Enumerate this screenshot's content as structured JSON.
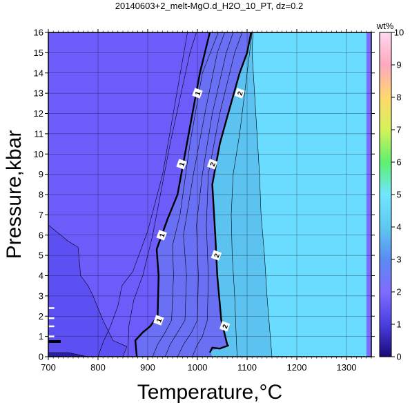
{
  "chart_data": {
    "type": "heatmap",
    "title": "20140603+2_melt-MgO.d_H2O_10_PT, dz=0.2",
    "xlabel": "Temperature,°C",
    "ylabel": "Pressure,kbar",
    "xlim": [
      700,
      1350
    ],
    "ylim": [
      0,
      16
    ],
    "x_ticks": [
      700,
      800,
      900,
      1000,
      1100,
      1200,
      1300
    ],
    "y_ticks": [
      0,
      1,
      2,
      3,
      4,
      5,
      6,
      7,
      8,
      9,
      10,
      11,
      12,
      13,
      14,
      15,
      16
    ],
    "grid": true,
    "colorbar": {
      "label": "wt%",
      "range": [
        0,
        10
      ],
      "ticks": [
        0,
        1,
        2,
        3,
        4,
        5,
        6,
        7,
        8,
        9,
        10
      ],
      "colors": [
        "#1a0a78",
        "#4a3ee0",
        "#7f6cff",
        "#5a8cf0",
        "#60c8f0",
        "#70e6ff",
        "#5ef070",
        "#d4f25a",
        "#ffd86c",
        "#ffa8c0",
        "#ffd8f0"
      ]
    },
    "regions": [
      {
        "level": 0.2,
        "color": "#2a20a8",
        "boundary": [
          [
            700,
            0
          ],
          [
            700,
            0.2
          ],
          [
            740,
            0.2
          ],
          [
            760,
            0.1
          ],
          [
            780,
            0
          ]
        ]
      },
      {
        "level": 0.4,
        "color": "#5c50f2",
        "boundary": [
          [
            700,
            0.2
          ],
          [
            740,
            0.2
          ],
          [
            760,
            0.1
          ],
          [
            780,
            0
          ],
          [
            850,
            0
          ],
          [
            858,
            0.5
          ],
          [
            830,
            0.8
          ],
          [
            810,
            1.8
          ],
          [
            790,
            3.0
          ],
          [
            780,
            3.5
          ],
          [
            765,
            4.0
          ],
          [
            760,
            5.4
          ],
          [
            740,
            5.7
          ],
          [
            700,
            6.5
          ]
        ]
      },
      {
        "level": 0.6,
        "color": "#6c5cfa",
        "boundary": [
          [
            700,
            6.5
          ],
          [
            740,
            5.7
          ],
          [
            760,
            5.4
          ],
          [
            765,
            4.0
          ],
          [
            780,
            3.5
          ],
          [
            790,
            3.0
          ],
          [
            810,
            1.8
          ],
          [
            830,
            0.8
          ],
          [
            858,
            0.5
          ],
          [
            850,
            0
          ],
          [
            1340,
            0
          ],
          [
            1340,
            16
          ],
          [
            700,
            16
          ]
        ]
      },
      {
        "level": 1.0,
        "color": "#6a70f4",
        "boundary": [
          [
            878,
            0
          ],
          [
            880,
            1.0
          ],
          [
            905,
            1.5
          ],
          [
            920,
            2.0
          ],
          [
            922,
            4.0
          ],
          [
            918,
            5.3
          ],
          [
            940,
            6.8
          ],
          [
            960,
            8.0
          ],
          [
            975,
            10.0
          ],
          [
            990,
            12.0
          ],
          [
            1005,
            14.0
          ],
          [
            1015,
            15.0
          ],
          [
            1025,
            16.0
          ],
          [
            1340,
            16
          ],
          [
            1340,
            0
          ]
        ]
      },
      {
        "level": 2.0,
        "color": "#5cc2f0",
        "boundary": [
          [
            1025,
            0.3
          ],
          [
            1045,
            0.4
          ],
          [
            1060,
            0.6
          ],
          [
            1048,
            1.8
          ],
          [
            1040,
            4.0
          ],
          [
            1036,
            6.0
          ],
          [
            1030,
            8.5
          ],
          [
            1045,
            10.5
          ],
          [
            1062,
            12.0
          ],
          [
            1085,
            14.0
          ],
          [
            1100,
            15.0
          ],
          [
            1108,
            16.0
          ],
          [
            1340,
            16
          ],
          [
            1340,
            0
          ],
          [
            1030,
            0
          ]
        ]
      },
      {
        "level": 3.0,
        "color": "#6adcff",
        "boundary": [
          [
            1150,
            0
          ],
          [
            1140,
            3.0
          ],
          [
            1135,
            5.0
          ],
          [
            1128,
            7.0
          ],
          [
            1125,
            9.0
          ],
          [
            1120,
            11.0
          ],
          [
            1115,
            13.0
          ],
          [
            1110,
            15.0
          ],
          [
            1112,
            16.0
          ],
          [
            1340,
            16
          ],
          [
            1340,
            0
          ]
        ]
      }
    ],
    "contours": [
      {
        "level": 1,
        "bold": true,
        "label": "1",
        "points": [
          [
            878,
            0
          ],
          [
            875,
            0.8
          ],
          [
            890,
            1.2
          ],
          [
            905,
            1.5
          ],
          [
            920,
            2.0
          ],
          [
            922,
            4.0
          ],
          [
            918,
            5.3
          ],
          [
            940,
            6.8
          ],
          [
            960,
            8.0
          ],
          [
            975,
            10.0
          ],
          [
            990,
            12.0
          ],
          [
            1005,
            14.0
          ],
          [
            1015,
            15.0
          ],
          [
            1025,
            16.0
          ]
        ],
        "labels_at": [
          [
            922,
            1.8
          ],
          [
            928,
            6.0
          ],
          [
            968,
            9.5
          ],
          [
            1000,
            13.0
          ]
        ]
      },
      {
        "level": 2,
        "bold": true,
        "label": "2",
        "points": [
          [
            1025,
            0.2
          ],
          [
            1030,
            0.45
          ],
          [
            1045,
            0.4
          ],
          [
            1062,
            0.55
          ],
          [
            1060,
            0.6
          ],
          [
            1050,
            1.6
          ],
          [
            1048,
            1.8
          ],
          [
            1040,
            4.0
          ],
          [
            1036,
            6.0
          ],
          [
            1030,
            8.5
          ],
          [
            1045,
            10.5
          ],
          [
            1062,
            12.0
          ],
          [
            1085,
            14.0
          ],
          [
            1100,
            15.0
          ],
          [
            1108,
            16.0
          ]
        ],
        "labels_at": [
          [
            1055,
            1.5
          ],
          [
            1038,
            5.0
          ],
          [
            1030,
            9.5
          ],
          [
            1085,
            13.0
          ]
        ]
      },
      {
        "level": 0.2,
        "bold": false,
        "points": [
          [
            700,
            0.2
          ],
          [
            740,
            0.2
          ],
          [
            760,
            0.1
          ],
          [
            780,
            0
          ]
        ]
      },
      {
        "level": 0.4,
        "bold": false,
        "points": [
          [
            700,
            6.5
          ],
          [
            740,
            5.7
          ],
          [
            760,
            5.4
          ],
          [
            765,
            4.0
          ],
          [
            780,
            3.5
          ],
          [
            790,
            3.0
          ],
          [
            810,
            1.8
          ],
          [
            830,
            0.8
          ],
          [
            858,
            0.5
          ],
          [
            850,
            0
          ]
        ]
      },
      {
        "level": 0.6,
        "bold": false,
        "points": [
          [
            800,
            0
          ],
          [
            810,
            0.7
          ],
          [
            825,
            1.5
          ],
          [
            840,
            2.5
          ],
          [
            848,
            3.5
          ],
          [
            870,
            4.2
          ],
          [
            900,
            6.2
          ],
          [
            930,
            9.0
          ],
          [
            980,
            16
          ]
        ]
      },
      {
        "level": 0.8,
        "bold": false,
        "points": [
          [
            860,
            0
          ],
          [
            862,
            1.5
          ],
          [
            872,
            2.8
          ],
          [
            890,
            4.0
          ],
          [
            910,
            6.0
          ],
          [
            945,
            10.5
          ],
          [
            985,
            15.0
          ],
          [
            998,
            16.0
          ]
        ]
      },
      {
        "level": 1.2,
        "bold": false,
        "points": [
          [
            910,
            0
          ],
          [
            920,
            0.6
          ],
          [
            935,
            1.2
          ],
          [
            948,
            1.8
          ],
          [
            952,
            4.0
          ],
          [
            950,
            5.5
          ],
          [
            965,
            7.0
          ],
          [
            985,
            10.5
          ],
          [
            1010,
            14.0
          ],
          [
            1042,
            16.0
          ]
        ]
      },
      {
        "level": 1.4,
        "bold": false,
        "points": [
          [
            935,
            0
          ],
          [
            945,
            0.6
          ],
          [
            960,
            1.2
          ],
          [
            975,
            1.8
          ],
          [
            978,
            4.0
          ],
          [
            972,
            6.0
          ],
          [
            992,
            9.0
          ],
          [
            1015,
            12.0
          ],
          [
            1040,
            15.0
          ],
          [
            1055,
            16.0
          ]
        ]
      },
      {
        "level": 1.6,
        "bold": false,
        "points": [
          [
            960,
            0
          ],
          [
            972,
            0.6
          ],
          [
            988,
            1.2
          ],
          [
            1000,
            1.8
          ],
          [
            1002,
            4.0
          ],
          [
            998,
            6.5
          ],
          [
            1010,
            9.0
          ],
          [
            1030,
            12.0
          ],
          [
            1058,
            15.0
          ],
          [
            1072,
            16.0
          ]
        ]
      },
      {
        "level": 1.8,
        "bold": false,
        "points": [
          [
            990,
            0
          ],
          [
            998,
            0.5
          ],
          [
            1010,
            1.0
          ],
          [
            1020,
            1.8
          ],
          [
            1022,
            4.0
          ],
          [
            1018,
            6.5
          ],
          [
            1022,
            9.0
          ],
          [
            1045,
            12.0
          ],
          [
            1075,
            15.0
          ],
          [
            1090,
            16.0
          ]
        ]
      },
      {
        "level": 2.5,
        "bold": false,
        "points": [
          [
            1080,
            0
          ],
          [
            1078,
            1.0
          ],
          [
            1075,
            3.0
          ],
          [
            1070,
            5.0
          ],
          [
            1068,
            7.0
          ],
          [
            1072,
            9.0
          ],
          [
            1085,
            11.0
          ],
          [
            1100,
            14.0
          ],
          [
            1110,
            16.0
          ]
        ]
      },
      {
        "level": 3.0,
        "bold": false,
        "points": [
          [
            1150,
            0
          ],
          [
            1140,
            3.0
          ],
          [
            1135,
            5.0
          ],
          [
            1128,
            7.0
          ],
          [
            1125,
            9.0
          ],
          [
            1120,
            11.0
          ],
          [
            1115,
            13.0
          ],
          [
            1110,
            15.0
          ],
          [
            1112,
            16.0
          ]
        ]
      }
    ],
    "stubs": [
      {
        "color": "#000000",
        "x": [
          700,
          725
        ],
        "y": 0.75
      },
      {
        "color": "#ffffff",
        "x": [
          700,
          712
        ],
        "y": 1.0
      },
      {
        "color": "#ffffff",
        "x": [
          700,
          712
        ],
        "y": 1.5
      },
      {
        "color": "#ffffff",
        "x": [
          700,
          712
        ],
        "y": 1.9
      },
      {
        "color": "#ffffff",
        "x": [
          700,
          712
        ],
        "y": 2.4
      }
    ]
  }
}
